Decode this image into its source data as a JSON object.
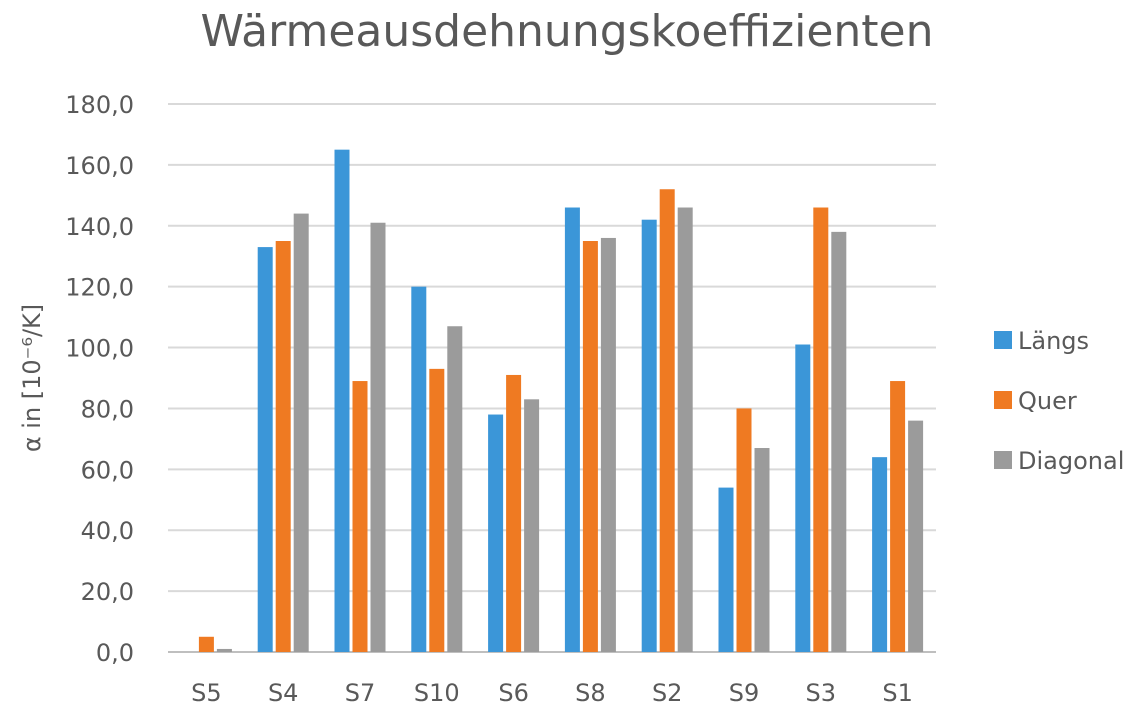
{
  "chart_data": {
    "type": "bar",
    "title": "Wärmeausdehnungskoeffizienten",
    "xlabel": "",
    "ylabel": "α in [10⁻⁶/K]",
    "ylim": [
      0,
      180
    ],
    "ytick_labels": [
      "0,0",
      "20,0",
      "40,0",
      "60,0",
      "80,0",
      "100,0",
      "120,0",
      "140,0",
      "160,0",
      "180,0"
    ],
    "grid": true,
    "legend_position": "right",
    "categories": [
      "S5",
      "S4",
      "S7",
      "S10",
      "S6",
      "S8",
      "S2",
      "S9",
      "S3",
      "S1"
    ],
    "series": [
      {
        "name": "Längs",
        "color": "#3b96d8",
        "values": [
          0,
          133,
          165,
          120,
          78,
          146,
          142,
          54,
          101,
          64
        ]
      },
      {
        "name": "Quer",
        "color": "#ef7a22",
        "values": [
          5,
          135,
          89,
          93,
          91,
          135,
          152,
          80,
          146,
          89
        ]
      },
      {
        "name": "Diagonal",
        "color": "#9b9b9b",
        "values": [
          1,
          144,
          141,
          107,
          83,
          136,
          146,
          67,
          138,
          76
        ]
      }
    ]
  }
}
